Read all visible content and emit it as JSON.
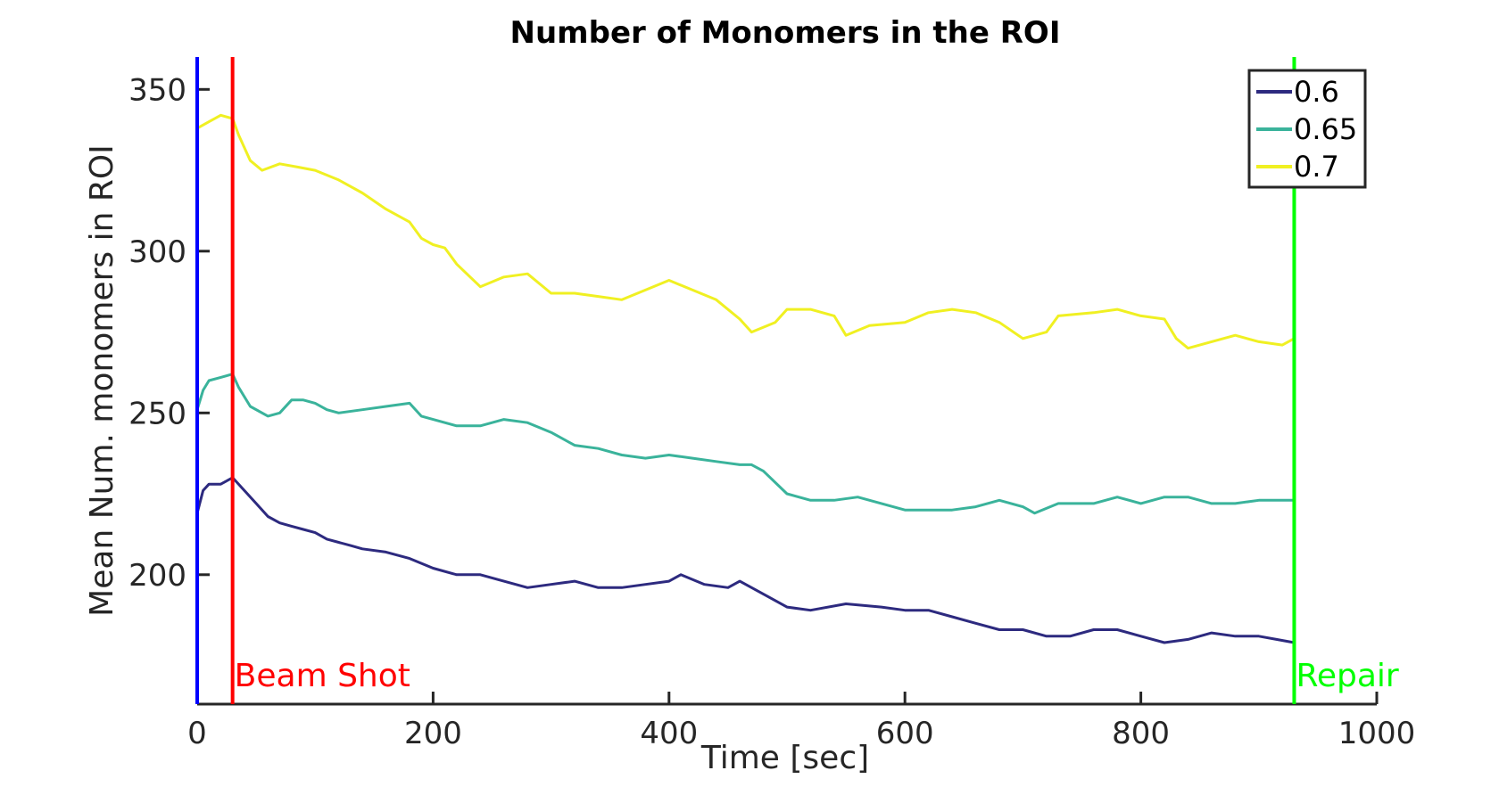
{
  "chart_data": {
    "type": "line",
    "title": "Number of Monomers in the ROI",
    "xlabel": "Time [sec]",
    "ylabel": "Mean Num. monomers in ROI",
    "xlim": [
      0,
      1000
    ],
    "ylim": [
      160,
      360
    ],
    "xticks": [
      0,
      200,
      400,
      600,
      800,
      1000
    ],
    "yticks": [
      200,
      250,
      300,
      350
    ],
    "grid": false,
    "legend_position": "top-right",
    "series": [
      {
        "name": "0.6",
        "color": "#2d2a7f",
        "points": [
          [
            0,
            219
          ],
          [
            5,
            226
          ],
          [
            10,
            228
          ],
          [
            20,
            228
          ],
          [
            30,
            230
          ],
          [
            40,
            226
          ],
          [
            50,
            222
          ],
          [
            60,
            218
          ],
          [
            70,
            216
          ],
          [
            80,
            215
          ],
          [
            90,
            214
          ],
          [
            100,
            213
          ],
          [
            110,
            211
          ],
          [
            120,
            210
          ],
          [
            130,
            209
          ],
          [
            140,
            208
          ],
          [
            160,
            207
          ],
          [
            180,
            205
          ],
          [
            200,
            202
          ],
          [
            220,
            200
          ],
          [
            240,
            200
          ],
          [
            260,
            198
          ],
          [
            280,
            196
          ],
          [
            300,
            197
          ],
          [
            320,
            198
          ],
          [
            340,
            196
          ],
          [
            360,
            196
          ],
          [
            380,
            197
          ],
          [
            400,
            198
          ],
          [
            410,
            200
          ],
          [
            430,
            197
          ],
          [
            450,
            196
          ],
          [
            460,
            198
          ],
          [
            480,
            194
          ],
          [
            500,
            190
          ],
          [
            520,
            189
          ],
          [
            550,
            191
          ],
          [
            580,
            190
          ],
          [
            600,
            189
          ],
          [
            620,
            189
          ],
          [
            640,
            187
          ],
          [
            660,
            185
          ],
          [
            680,
            183
          ],
          [
            700,
            183
          ],
          [
            720,
            181
          ],
          [
            740,
            181
          ],
          [
            760,
            183
          ],
          [
            780,
            183
          ],
          [
            800,
            181
          ],
          [
            820,
            179
          ],
          [
            840,
            180
          ],
          [
            860,
            182
          ],
          [
            880,
            181
          ],
          [
            900,
            181
          ],
          [
            915,
            180
          ],
          [
            930,
            179
          ]
        ]
      },
      {
        "name": "0.65",
        "color": "#3ab39b",
        "points": [
          [
            0,
            251
          ],
          [
            5,
            257
          ],
          [
            10,
            260
          ],
          [
            20,
            261
          ],
          [
            30,
            262
          ],
          [
            35,
            258
          ],
          [
            45,
            252
          ],
          [
            60,
            249
          ],
          [
            70,
            250
          ],
          [
            80,
            254
          ],
          [
            90,
            254
          ],
          [
            100,
            253
          ],
          [
            110,
            251
          ],
          [
            120,
            250
          ],
          [
            140,
            251
          ],
          [
            160,
            252
          ],
          [
            180,
            253
          ],
          [
            190,
            249
          ],
          [
            200,
            248
          ],
          [
            220,
            246
          ],
          [
            240,
            246
          ],
          [
            260,
            248
          ],
          [
            280,
            247
          ],
          [
            300,
            244
          ],
          [
            320,
            240
          ],
          [
            340,
            239
          ],
          [
            360,
            237
          ],
          [
            380,
            236
          ],
          [
            400,
            237
          ],
          [
            420,
            236
          ],
          [
            440,
            235
          ],
          [
            460,
            234
          ],
          [
            470,
            234
          ],
          [
            480,
            232
          ],
          [
            500,
            225
          ],
          [
            520,
            223
          ],
          [
            540,
            223
          ],
          [
            560,
            224
          ],
          [
            580,
            222
          ],
          [
            600,
            220
          ],
          [
            620,
            220
          ],
          [
            640,
            220
          ],
          [
            660,
            221
          ],
          [
            680,
            223
          ],
          [
            700,
            221
          ],
          [
            710,
            219
          ],
          [
            730,
            222
          ],
          [
            760,
            222
          ],
          [
            780,
            224
          ],
          [
            800,
            222
          ],
          [
            820,
            224
          ],
          [
            840,
            224
          ],
          [
            860,
            222
          ],
          [
            880,
            222
          ],
          [
            900,
            223
          ],
          [
            930,
            223
          ]
        ]
      },
      {
        "name": "0.7",
        "color": "#f0f022",
        "points": [
          [
            0,
            338
          ],
          [
            10,
            340
          ],
          [
            20,
            342
          ],
          [
            30,
            341
          ],
          [
            35,
            336
          ],
          [
            45,
            328
          ],
          [
            55,
            325
          ],
          [
            70,
            327
          ],
          [
            85,
            326
          ],
          [
            100,
            325
          ],
          [
            120,
            322
          ],
          [
            140,
            318
          ],
          [
            160,
            313
          ],
          [
            180,
            309
          ],
          [
            190,
            304
          ],
          [
            200,
            302
          ],
          [
            210,
            301
          ],
          [
            220,
            296
          ],
          [
            240,
            289
          ],
          [
            260,
            292
          ],
          [
            280,
            293
          ],
          [
            300,
            287
          ],
          [
            320,
            287
          ],
          [
            340,
            286
          ],
          [
            360,
            285
          ],
          [
            380,
            288
          ],
          [
            400,
            291
          ],
          [
            420,
            288
          ],
          [
            440,
            285
          ],
          [
            460,
            279
          ],
          [
            470,
            275
          ],
          [
            490,
            278
          ],
          [
            500,
            282
          ],
          [
            520,
            282
          ],
          [
            540,
            280
          ],
          [
            550,
            274
          ],
          [
            570,
            277
          ],
          [
            600,
            278
          ],
          [
            620,
            281
          ],
          [
            640,
            282
          ],
          [
            660,
            281
          ],
          [
            680,
            278
          ],
          [
            700,
            273
          ],
          [
            720,
            275
          ],
          [
            730,
            280
          ],
          [
            760,
            281
          ],
          [
            780,
            282
          ],
          [
            800,
            280
          ],
          [
            820,
            279
          ],
          [
            830,
            273
          ],
          [
            840,
            270
          ],
          [
            860,
            272
          ],
          [
            880,
            274
          ],
          [
            900,
            272
          ],
          [
            920,
            271
          ],
          [
            930,
            273
          ]
        ]
      }
    ],
    "vertical_lines": [
      {
        "x": 0,
        "color": "#0000ff",
        "label": ""
      },
      {
        "x": 30,
        "color": "#ff0000",
        "label": "Beam Shot"
      },
      {
        "x": 930,
        "color": "#00ff00",
        "label": "Repair"
      }
    ]
  }
}
